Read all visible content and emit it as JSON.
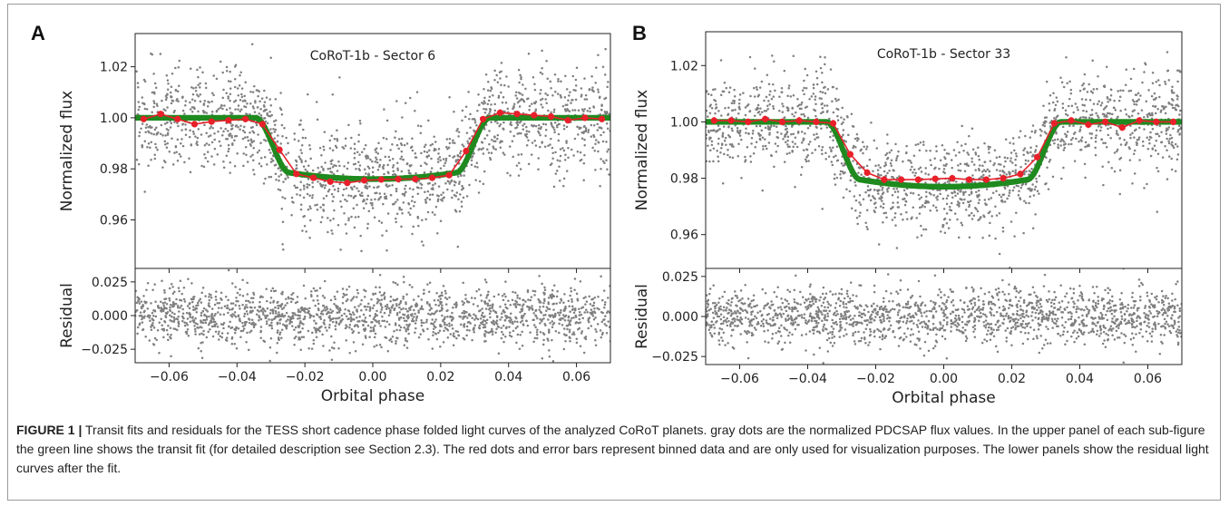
{
  "panel_labels": [
    "A",
    "B"
  ],
  "caption": {
    "label": "FIGURE 1 |",
    "text": "Transit fits and residuals for the TESS short cadence phase folded light curves of the analyzed CoRoT planets. gray dots are the normalized PDCSAP flux values. In the upper panel of each sub-figure the green line shows the transit fit (for detailed description see Section 2.3). The red dots and error bars represent binned data and are only used for visualization purposes. The lower panels show the residual light curves after the fit."
  },
  "colors": {
    "raw": "#7f7f7f",
    "fit": "#1f8a1f",
    "binned": "#e8202a"
  },
  "chart_data": [
    {
      "type": "scatter",
      "panel": "A",
      "title": "CoRoT-1b - Sector 6",
      "xlabel": "Orbital phase",
      "ylabel_top": "Normalized flux",
      "ylabel_bottom": "Residual",
      "xlim": [
        -0.07,
        0.07
      ],
      "ylim_top": [
        0.941,
        1.033
      ],
      "ylim_bottom": [
        -0.035,
        0.035
      ],
      "xticks": [
        "-0.06",
        "-0.04",
        "-0.02",
        "0.00",
        "0.02",
        "0.04",
        "0.06"
      ],
      "yticks_top": [
        "0.96",
        "0.98",
        "1.00",
        "1.02"
      ],
      "yticks_bottom": [
        "-0.025",
        "0.000",
        "0.025"
      ],
      "grid": false,
      "transit_model": {
        "t1": -0.0345,
        "t2": -0.0245,
        "t3": 0.0245,
        "t4": 0.0345,
        "depth": 0.0215
      },
      "scatter_std_top": 0.0105,
      "residual_std": 0.0105,
      "series": [
        {
          "kind": "binned",
          "x": [
            -0.0675,
            -0.0625,
            -0.0575,
            -0.0525,
            -0.0475,
            -0.0425,
            -0.0375,
            -0.0325,
            -0.0275,
            -0.0225,
            -0.0175,
            -0.0125,
            -0.0075,
            -0.0025,
            0.0025,
            0.0075,
            0.0125,
            0.0175,
            0.0225,
            0.0275,
            0.0325,
            0.0375,
            0.0425,
            0.0475,
            0.0525,
            0.0575,
            0.0625,
            0.0675
          ],
          "y": [
            0.9995,
            1.0015,
            0.9995,
            0.9975,
            0.9985,
            0.999,
            0.9995,
            0.9975,
            0.9875,
            0.978,
            0.9765,
            0.975,
            0.9745,
            0.9755,
            0.9758,
            0.976,
            0.976,
            0.9765,
            0.9775,
            0.987,
            0.9995,
            1.002,
            1.0015,
            1.001,
            1.0005,
            0.999,
            1.0,
            0.9995
          ]
        }
      ]
    },
    {
      "type": "scatter",
      "panel": "B",
      "title": "CoRoT-1b - Sector 33",
      "xlabel": "Orbital phase",
      "ylabel_top": "Normalized flux",
      "ylabel_bottom": "Residual",
      "xlim": [
        -0.07,
        0.07
      ],
      "ylim_top": [
        0.948,
        1.032
      ],
      "ylim_bottom": [
        -0.03,
        0.03
      ],
      "xticks": [
        "-0.06",
        "-0.04",
        "-0.02",
        "0.00",
        "0.02",
        "0.04",
        "0.06"
      ],
      "yticks_top": [
        "0.96",
        "0.98",
        "1.00",
        "1.02"
      ],
      "yticks_bottom": [
        "-0.025",
        "0.000",
        "0.025"
      ],
      "grid": false,
      "transit_model": {
        "t1": -0.0345,
        "t2": -0.0245,
        "t3": 0.0245,
        "t4": 0.0345,
        "depth": 0.0205
      },
      "scatter_std_top": 0.0085,
      "residual_std": 0.0085,
      "series": [
        {
          "kind": "binned",
          "x": [
            -0.0675,
            -0.0625,
            -0.0575,
            -0.0525,
            -0.0475,
            -0.0425,
            -0.0375,
            -0.0325,
            -0.0275,
            -0.0225,
            -0.0175,
            -0.0125,
            -0.0075,
            -0.0025,
            0.0025,
            0.0075,
            0.0125,
            0.0175,
            0.0225,
            0.0275,
            0.0325,
            0.0375,
            0.0425,
            0.0475,
            0.0525,
            0.0575,
            0.0625,
            0.0675
          ],
          "y": [
            1.0005,
            1.0005,
            1.0,
            1.001,
            1.0,
            1.0005,
            1.0,
            0.9995,
            0.9885,
            0.982,
            0.9795,
            0.9795,
            0.9795,
            0.9798,
            0.98,
            0.9795,
            0.9795,
            0.98,
            0.9815,
            0.9875,
            0.9995,
            1.0005,
            0.999,
            1.0,
            0.998,
            1.0005,
            1.0,
            1.0
          ]
        }
      ]
    }
  ]
}
